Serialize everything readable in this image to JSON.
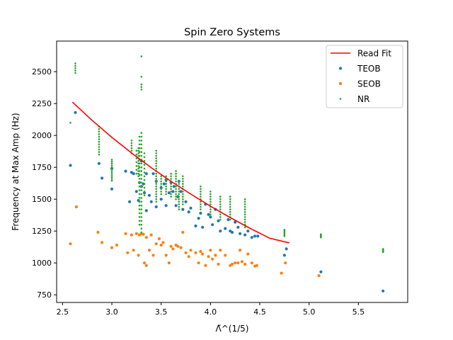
{
  "chart_data": {
    "type": "scatter",
    "title": "Spin Zero Systems",
    "xlabel": "Λ̃^(1/5)",
    "ylabel": "Frequency at Max Amp (Hz)",
    "xlim": [
      2.44,
      6.0
    ],
    "ylim": [
      690,
      2740
    ],
    "xticks": [
      2.5,
      3.0,
      3.5,
      4.0,
      4.5,
      5.0,
      5.5
    ],
    "xtick_labels": [
      "2.5",
      "3.0",
      "3.5",
      "4.0",
      "4.5",
      "5.0",
      "5.5"
    ],
    "yticks": [
      750,
      1000,
      1250,
      1500,
      1750,
      2000,
      2250,
      2500
    ],
    "ytick_labels": [
      "750",
      "1000",
      "1250",
      "1500",
      "1750",
      "2000",
      "2250",
      "2500"
    ],
    "grid": false,
    "legend_position": "top-right",
    "series": [
      {
        "name": "Read Fit",
        "kind": "line",
        "color": "#ff0000",
        "x": [
          2.6,
          2.8,
          3.0,
          3.2,
          3.4,
          3.6,
          3.8,
          4.0,
          4.2,
          4.4,
          4.6,
          4.8
        ],
        "y": [
          2262,
          2118,
          1985,
          1862,
          1747,
          1640,
          1540,
          1445,
          1356,
          1272,
          1194,
          1157
        ]
      },
      {
        "name": "TEOB",
        "kind": "scatter",
        "color": "#1f77b4",
        "x": [
          2.58,
          2.63,
          2.87,
          2.9,
          3.0,
          3.0,
          3.14,
          3.18,
          3.2,
          3.22,
          3.25,
          3.27,
          3.28,
          3.3,
          3.3,
          3.32,
          3.33,
          3.35,
          3.35,
          3.38,
          3.4,
          3.42,
          3.45,
          3.45,
          3.5,
          3.5,
          3.53,
          3.55,
          3.55,
          3.58,
          3.6,
          3.62,
          3.63,
          3.65,
          3.67,
          3.68,
          3.7,
          3.72,
          3.75,
          3.78,
          3.8,
          3.85,
          3.88,
          3.9,
          3.92,
          3.95,
          3.98,
          4.0,
          4.02,
          4.05,
          4.08,
          4.1,
          4.15,
          4.18,
          4.2,
          4.22,
          4.25,
          4.28,
          4.3,
          4.35,
          4.38,
          4.42,
          4.45,
          4.48,
          4.75,
          4.77,
          5.12,
          5.75
        ],
        "y": [
          1765,
          2180,
          1780,
          1665,
          1740,
          1580,
          1720,
          1480,
          1710,
          1700,
          1560,
          1490,
          1630,
          1600,
          1800,
          1620,
          1550,
          1700,
          1410,
          1530,
          1480,
          1700,
          1640,
          1440,
          1500,
          1590,
          1620,
          1650,
          1450,
          1550,
          1630,
          1560,
          1600,
          1450,
          1520,
          1640,
          1560,
          1420,
          1480,
          1400,
          1430,
          1290,
          1350,
          1390,
          1280,
          1460,
          1380,
          1360,
          1300,
          1420,
          1330,
          1250,
          1270,
          1340,
          1250,
          1240,
          1320,
          1280,
          1230,
          1220,
          1250,
          1200,
          1210,
          1210,
          1060,
          1110,
          930,
          780
        ]
      },
      {
        "name": "SEOB",
        "kind": "scatter",
        "color": "#ff7f0e",
        "x": [
          2.58,
          2.64,
          2.86,
          2.9,
          3.0,
          3.05,
          3.14,
          3.16,
          3.2,
          3.22,
          3.25,
          3.27,
          3.28,
          3.3,
          3.32,
          3.33,
          3.35,
          3.35,
          3.38,
          3.4,
          3.42,
          3.45,
          3.48,
          3.5,
          3.52,
          3.55,
          3.58,
          3.6,
          3.62,
          3.65,
          3.67,
          3.7,
          3.72,
          3.75,
          3.78,
          3.8,
          3.85,
          3.88,
          3.9,
          3.92,
          3.95,
          3.98,
          4.0,
          4.02,
          4.05,
          4.08,
          4.1,
          4.15,
          4.2,
          4.22,
          4.25,
          4.28,
          4.3,
          4.32,
          4.35,
          4.38,
          4.42,
          4.45,
          4.47,
          4.72,
          4.76,
          5.1
        ],
        "y": [
          1150,
          1440,
          1240,
          1160,
          1120,
          1140,
          1230,
          1080,
          1220,
          1100,
          1230,
          1060,
          1220,
          1230,
          1225,
          1000,
          1200,
          980,
          1100,
          1220,
          1060,
          1150,
          1190,
          1140,
          1160,
          1060,
          1000,
          1130,
          1110,
          1140,
          1130,
          1120,
          1240,
          1080,
          1050,
          1100,
          1080,
          1000,
          1090,
          1070,
          980,
          1050,
          1100,
          1030,
          1060,
          990,
          1100,
          1060,
          980,
          990,
          1000,
          1000,
          1100,
          1010,
          990,
          1070,
          1000,
          975,
          980,
          920,
          1000,
          900
        ]
      },
      {
        "name": "NR",
        "kind": "scatter",
        "color": "#2ca02c",
        "x": [
          2.58,
          2.63,
          2.63,
          2.63,
          2.63,
          2.63,
          2.87,
          2.87,
          2.87,
          2.87,
          2.87,
          2.87,
          2.87,
          2.87,
          2.87,
          2.87,
          2.87,
          2.87,
          3.0,
          3.0,
          3.0,
          3.0,
          3.0,
          3.0,
          3.0,
          3.0,
          3.0,
          3.0,
          3.0,
          3.0,
          3.2,
          3.2,
          3.2,
          3.2,
          3.2,
          3.2,
          3.25,
          3.25,
          3.25,
          3.25,
          3.25,
          3.25,
          3.25,
          3.27,
          3.27,
          3.27,
          3.27,
          3.27,
          3.27,
          3.27,
          3.27,
          3.27,
          3.27,
          3.27,
          3.27,
          3.28,
          3.28,
          3.28,
          3.28,
          3.28,
          3.28,
          3.28,
          3.28,
          3.28,
          3.28,
          3.28,
          3.28,
          3.28,
          3.28,
          3.28,
          3.28,
          3.28,
          3.28,
          3.28,
          3.28,
          3.28,
          3.28,
          3.28,
          3.28,
          3.3,
          3.3,
          3.3,
          3.3,
          3.3,
          3.3,
          3.3,
          3.3,
          3.3,
          3.3,
          3.3,
          3.3,
          3.3,
          3.3,
          3.3,
          3.3,
          3.3,
          3.3,
          3.3,
          3.3,
          3.3,
          3.3,
          3.3,
          3.3,
          3.3,
          3.3,
          3.3,
          3.3,
          3.3,
          3.3,
          3.3,
          3.3,
          3.33,
          3.33,
          3.33,
          3.33,
          3.33,
          3.33,
          3.33,
          3.33,
          3.33,
          3.33,
          3.33,
          3.33,
          3.45,
          3.45,
          3.45,
          3.45,
          3.45,
          3.45,
          3.45,
          3.45,
          3.45,
          3.45,
          3.45,
          3.45,
          3.45,
          3.45,
          3.45,
          3.45,
          3.45,
          3.45,
          3.45,
          3.45,
          3.45,
          3.5,
          3.5,
          3.5,
          3.5,
          3.5,
          3.5,
          3.5,
          3.5,
          3.55,
          3.55,
          3.55,
          3.55,
          3.55,
          3.55,
          3.55,
          3.55,
          3.6,
          3.6,
          3.6,
          3.6,
          3.6,
          3.6,
          3.6,
          3.6,
          3.6,
          3.6,
          3.65,
          3.65,
          3.65,
          3.65,
          3.65,
          3.65,
          3.65,
          3.65,
          3.65,
          3.65,
          3.65,
          3.65,
          3.68,
          3.68,
          3.68,
          3.68,
          3.68,
          3.68,
          3.68,
          3.68,
          3.68,
          3.68,
          3.68,
          3.68,
          3.72,
          3.72,
          3.72,
          3.72,
          3.72,
          3.72,
          3.72,
          3.72,
          3.72,
          3.72,
          3.72,
          3.72,
          3.9,
          3.9,
          3.9,
          3.9,
          3.9,
          3.9,
          3.9,
          3.9,
          3.9,
          3.9,
          4.0,
          4.0,
          4.0,
          4.0,
          4.0,
          4.0,
          4.0,
          4.0,
          4.0,
          4.0,
          4.1,
          4.1,
          4.1,
          4.1,
          4.1,
          4.1,
          4.1,
          4.1,
          4.1,
          4.1,
          4.2,
          4.2,
          4.2,
          4.2,
          4.2,
          4.2,
          4.2,
          4.2,
          4.2,
          4.2,
          4.35,
          4.35,
          4.35,
          4.35,
          4.35,
          4.35,
          4.35,
          4.35,
          4.35,
          4.35,
          4.35,
          4.35,
          4.75,
          4.75,
          4.75,
          4.75,
          4.75,
          4.75,
          5.12,
          5.12,
          5.12,
          5.12,
          5.12,
          5.12,
          5.75,
          5.75,
          5.75,
          5.75,
          5.75,
          5.75
        ],
        "y": [
          2100,
          2490,
          2509,
          2528,
          2546,
          2565,
          2070,
          2050,
          2030,
          2010,
          1990,
          1970,
          1950,
          1930,
          1910,
          1890,
          1870,
          1850,
          1810,
          1795,
          1780,
          1765,
          1750,
          1735,
          1720,
          1705,
          1690,
          1675,
          1660,
          1645,
          1960,
          1940,
          1920,
          1900,
          1880,
          1860,
          1880,
          1850,
          1820,
          1790,
          1760,
          1730,
          1700,
          1900,
          1880,
          1860,
          1840,
          1820,
          1800,
          1780,
          1760,
          1740,
          1720,
          1700,
          1680,
          1990,
          1960,
          1930,
          1900,
          1870,
          1840,
          1810,
          1780,
          1750,
          1720,
          1690,
          1660,
          1630,
          1600,
          1570,
          1540,
          1510,
          1480,
          1450,
          1420,
          1390,
          1360,
          1330,
          1300,
          2620,
          2460,
          2400,
          2380,
          2360,
          2020,
          1990,
          1960,
          1930,
          1900,
          1870,
          1840,
          1810,
          1780,
          1750,
          1720,
          1690,
          1660,
          1630,
          1600,
          1570,
          1540,
          1510,
          1480,
          1450,
          1420,
          1390,
          1360,
          1330,
          1300,
          1270,
          1240,
          1860,
          1830,
          1800,
          1770,
          1740,
          1710,
          1680,
          1650,
          1620,
          1590,
          1560,
          1530,
          1880,
          1860,
          1840,
          1820,
          1800,
          1780,
          1760,
          1740,
          1720,
          1700,
          1680,
          1660,
          1640,
          1620,
          1600,
          1580,
          1560,
          1540,
          1520,
          1500,
          1480,
          1680,
          1660,
          1640,
          1620,
          1600,
          1580,
          1560,
          1540,
          1680,
          1660,
          1640,
          1620,
          1600,
          1580,
          1560,
          1540,
          1700,
          1680,
          1660,
          1640,
          1620,
          1600,
          1580,
          1560,
          1540,
          1520,
          1720,
          1700,
          1680,
          1660,
          1640,
          1620,
          1600,
          1580,
          1560,
          1540,
          1520,
          1500,
          1640,
          1620,
          1600,
          1580,
          1560,
          1540,
          1520,
          1500,
          1480,
          1460,
          1440,
          1420,
          1680,
          1660,
          1640,
          1620,
          1600,
          1580,
          1560,
          1540,
          1520,
          1500,
          1480,
          1460,
          1600,
          1580,
          1560,
          1540,
          1520,
          1500,
          1480,
          1460,
          1440,
          1420,
          1560,
          1540,
          1520,
          1500,
          1480,
          1460,
          1440,
          1420,
          1400,
          1380,
          1520,
          1500,
          1480,
          1460,
          1440,
          1420,
          1400,
          1380,
          1360,
          1340,
          1520,
          1500,
          1480,
          1460,
          1440,
          1420,
          1400,
          1380,
          1360,
          1340,
          1500,
          1480,
          1460,
          1440,
          1420,
          1400,
          1380,
          1360,
          1340,
          1320,
          1300,
          1280,
          1260,
          1250,
          1240,
          1230,
          1220,
          1210,
          1225,
          1220,
          1215,
          1210,
          1205,
          1200,
          1110,
          1105,
          1100,
          1095,
          1090,
          1085
        ]
      }
    ]
  }
}
